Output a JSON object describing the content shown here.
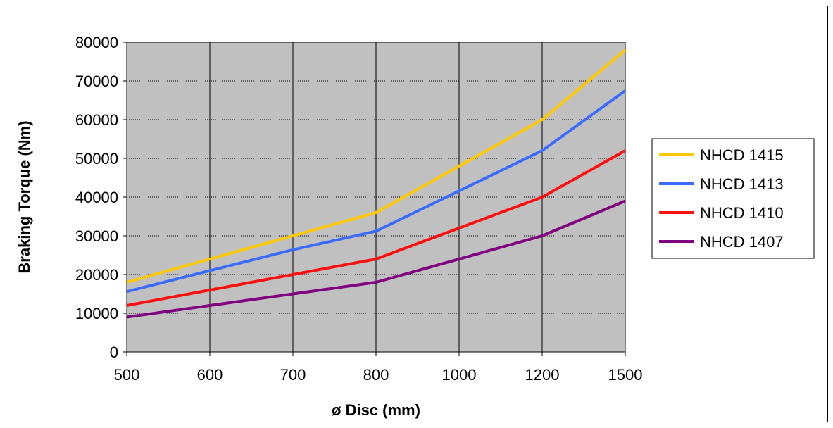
{
  "chart_data": {
    "type": "line",
    "title": "",
    "xlabel": "ø Disc (mm)",
    "ylabel": "Braking Torque (Nm)",
    "categories": [
      "500",
      "600",
      "700",
      "800",
      "1000",
      "1200",
      "1500"
    ],
    "ylim": [
      0,
      80000
    ],
    "yticks": [
      "0",
      "10000",
      "20000",
      "30000",
      "40000",
      "50000",
      "60000",
      "70000",
      "80000"
    ],
    "grid": {
      "vertical": true,
      "horizontal": "dotted"
    },
    "plot_background": "#c0c0c0",
    "legend": {
      "position": "right"
    },
    "series": [
      {
        "name": "NHCD 1415",
        "color": "#ffc800",
        "values": [
          18000,
          24000,
          30000,
          36000,
          48000,
          60000,
          78000
        ]
      },
      {
        "name": "NHCD 1413",
        "color": "#3c6cff",
        "values": [
          15600,
          21000,
          26400,
          31200,
          41600,
          52000,
          67500
        ]
      },
      {
        "name": "NHCD 1410",
        "color": "#ff1010",
        "values": [
          12000,
          16000,
          20000,
          24000,
          32000,
          40000,
          52000
        ]
      },
      {
        "name": "NHCD 1407",
        "color": "#800080",
        "values": [
          9000,
          12000,
          15000,
          18000,
          24000,
          30000,
          39000
        ]
      }
    ]
  }
}
